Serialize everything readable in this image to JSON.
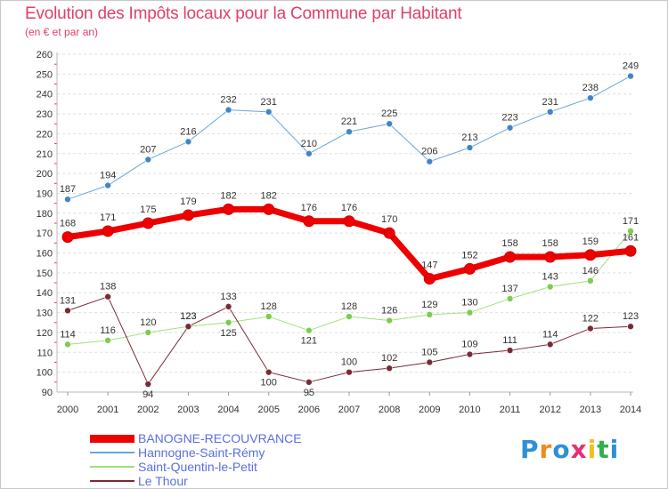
{
  "header": {
    "title": "Evolution des Impôts locaux pour la Commune par Habitant",
    "subtitle": "(en € et par an)"
  },
  "logo": {
    "text": "Proxiti"
  },
  "chart_data": {
    "type": "line",
    "title": "Evolution des Impôts locaux pour la Commune par Habitant",
    "subtitle": "(en € et par an)",
    "x": [
      2000,
      2001,
      2002,
      2003,
      2004,
      2005,
      2006,
      2007,
      2008,
      2009,
      2010,
      2011,
      2012,
      2013,
      2014
    ],
    "ylim": [
      90,
      260
    ],
    "yticks": [
      90,
      100,
      110,
      120,
      130,
      140,
      150,
      160,
      170,
      180,
      190,
      200,
      210,
      220,
      230,
      240,
      250,
      260
    ],
    "grid": "horizontal",
    "legend_position": "bottom-left",
    "series": [
      {
        "name": "Hannogne-Saint-Rémy",
        "color": "#6aa6d8",
        "marker": "#3f86c8",
        "width": 1,
        "values": [
          187,
          194,
          207,
          216,
          232,
          231,
          210,
          221,
          225,
          206,
          213,
          223,
          231,
          238,
          249
        ]
      },
      {
        "name": "Saint-Quentin-le-Petit",
        "color": "#9ee07a",
        "marker": "#7ccc4e",
        "width": 1,
        "values": [
          114,
          116,
          120,
          123,
          125,
          128,
          121,
          128,
          126,
          129,
          130,
          137,
          143,
          146,
          171
        ]
      },
      {
        "name": "Le Thour",
        "color": "#7a2a36",
        "marker": "#7a2a36",
        "width": 1,
        "values": [
          131,
          138,
          94,
          123,
          133,
          100,
          95,
          100,
          102,
          105,
          109,
          111,
          114,
          122,
          123
        ]
      },
      {
        "name": "BANOGNE-RECOUVRANCE",
        "color": "#ee0000",
        "marker": "#ee0000",
        "width": 7,
        "values": [
          168,
          171,
          175,
          179,
          182,
          182,
          176,
          176,
          170,
          147,
          152,
          158,
          158,
          159,
          161
        ]
      }
    ]
  }
}
